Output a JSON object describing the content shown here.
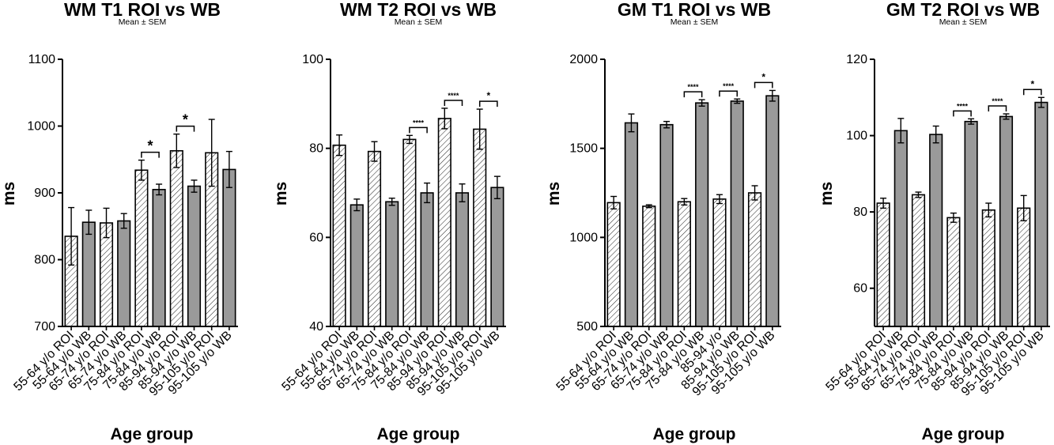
{
  "chart_data": [
    {
      "type": "bar",
      "title": "WM T1 ROI vs WB",
      "subtitle": "Mean ± SEM",
      "xlabel": "Age group",
      "ylabel": "ms",
      "ylim": [
        700,
        1100
      ],
      "yticks": [
        700,
        800,
        900,
        1000,
        1100
      ],
      "categories": [
        "55-64 y/o ROI",
        "55-64 y/o WB",
        "65-74 y/o ROI",
        "65-74 y/o WB",
        "75-84 y/o ROI",
        "75-84 y/o WB",
        "85-94 y/o ROI",
        "85-94 y/o WB",
        "95-105 y/o ROI",
        "95-105 y/o WB"
      ],
      "values": [
        835,
        856,
        855,
        858,
        934,
        905,
        963,
        910,
        960,
        935
      ],
      "errors": [
        43,
        18,
        22,
        11,
        15,
        8,
        25,
        9,
        50,
        27
      ],
      "patterns": [
        "hatched",
        "solid",
        "hatched",
        "solid",
        "hatched",
        "solid",
        "hatched",
        "solid",
        "hatched",
        "solid"
      ],
      "significance": [
        {
          "from": 4,
          "to": 5,
          "label": "*"
        },
        {
          "from": 6,
          "to": 7,
          "label": "*"
        }
      ],
      "colors": {
        "solid": "#9a9a9a",
        "hatched": "#ffffff",
        "outline": "#000000"
      }
    },
    {
      "type": "bar",
      "title": "WM T2 ROI vs WB",
      "subtitle": "Mean ± SEM",
      "xlabel": "Age group",
      "ylabel": "ms",
      "ylim": [
        40,
        100
      ],
      "yticks": [
        40,
        60,
        80,
        100
      ],
      "categories": [
        "55-64 y/o ROI",
        "55-64 y/o WB",
        "65-74 y/o ROI",
        "65-74 y/o WB",
        "75-84 y/o ROI",
        "75-84 y/o WB",
        "85-94 y/o ROI",
        "85-94 y/o WB",
        "95-105 y/o ROI",
        "95-105 y/o WB"
      ],
      "values": [
        80.7,
        67.3,
        79.3,
        68.0,
        82.0,
        70.0,
        86.7,
        70.0,
        84.3,
        71.2
      ],
      "errors": [
        2.3,
        1.3,
        2.2,
        0.8,
        0.9,
        2.2,
        2.3,
        2.0,
        4.5,
        2.5
      ],
      "patterns": [
        "hatched",
        "solid",
        "hatched",
        "solid",
        "hatched",
        "solid",
        "hatched",
        "solid",
        "hatched",
        "solid"
      ],
      "significance": [
        {
          "from": 4,
          "to": 5,
          "label": "****"
        },
        {
          "from": 6,
          "to": 7,
          "label": "****"
        },
        {
          "from": 8,
          "to": 9,
          "label": "*"
        }
      ],
      "colors": {
        "solid": "#9a9a9a",
        "hatched": "#ffffff",
        "outline": "#000000"
      }
    },
    {
      "type": "bar",
      "title": "GM T1 ROI vs WB",
      "subtitle": "Mean ± SEM",
      "xlabel": "Age group",
      "ylabel": "ms",
      "ylim": [
        500,
        2000
      ],
      "yticks": [
        500,
        1000,
        1500,
        2000
      ],
      "categories": [
        "55-64 y/o ROI",
        "55-64 y/o WB",
        "65-74 y/o ROI",
        "65-74 y/o WB",
        "75-84 y/o ROI",
        "75-84 y/o WB",
        "85-94 y/o",
        "85-94 y/o WB",
        "95-105 y/o ROI",
        "95-105 y/o WB"
      ],
      "values": [
        1195,
        1643,
        1175,
        1633,
        1200,
        1755,
        1215,
        1765,
        1250,
        1795
      ],
      "errors": [
        35,
        50,
        8,
        18,
        18,
        18,
        25,
        12,
        40,
        30
      ],
      "patterns": [
        "hatched",
        "solid",
        "hatched",
        "solid",
        "hatched",
        "solid",
        "hatched",
        "solid",
        "hatched",
        "solid"
      ],
      "significance": [
        {
          "from": 4,
          "to": 5,
          "label": "****"
        },
        {
          "from": 6,
          "to": 7,
          "label": "****"
        },
        {
          "from": 8,
          "to": 9,
          "label": "*"
        }
      ],
      "colors": {
        "solid": "#9a9a9a",
        "hatched": "#ffffff",
        "outline": "#000000"
      }
    },
    {
      "type": "bar",
      "title": "GM T2 ROI vs WB",
      "subtitle": "Mean ± SEM",
      "xlabel": "Age group",
      "ylabel": "ms",
      "ylim": [
        50,
        120
      ],
      "yticks": [
        60,
        80,
        100,
        120
      ],
      "categories": [
        "55-64 y/o ROI",
        "55-64 y/o WB",
        "65-74 y/o ROI",
        "65-74 y/o WB",
        "75-84 y/o ROI",
        "75-84 y/o WB",
        "85-94 y/o ROI",
        "85-94 y/o WB",
        "95-105 y/o ROI",
        "95-105 y/o WB"
      ],
      "values": [
        82.3,
        101.3,
        84.5,
        100.3,
        78.5,
        103.7,
        80.5,
        105.0,
        81.0,
        108.7
      ],
      "errors": [
        1.3,
        3.2,
        0.7,
        2.2,
        1.2,
        0.7,
        1.8,
        0.7,
        3.3,
        1.3
      ],
      "patterns": [
        "hatched",
        "solid",
        "hatched",
        "solid",
        "hatched",
        "solid",
        "hatched",
        "solid",
        "hatched",
        "solid"
      ],
      "significance": [
        {
          "from": 4,
          "to": 5,
          "label": "****"
        },
        {
          "from": 6,
          "to": 7,
          "label": "****"
        },
        {
          "from": 8,
          "to": 9,
          "label": "*"
        }
      ],
      "colors": {
        "solid": "#9a9a9a",
        "hatched": "#ffffff",
        "outline": "#000000"
      }
    }
  ]
}
